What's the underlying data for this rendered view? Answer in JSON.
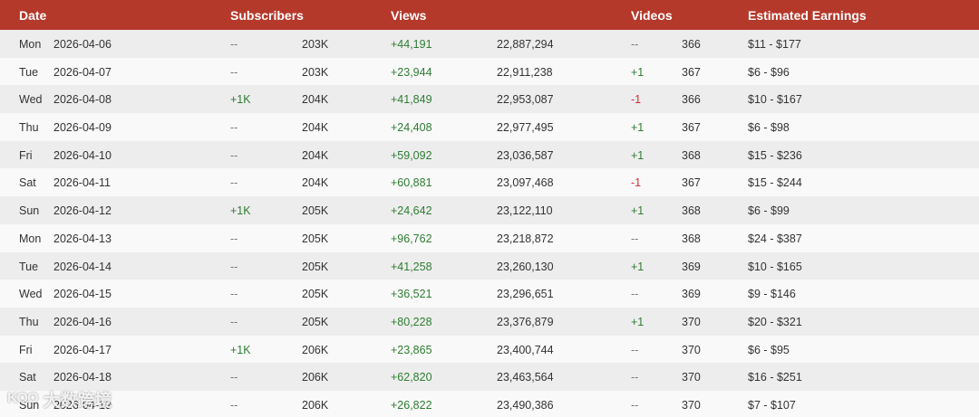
{
  "header": {
    "date": "Date",
    "subscribers": "Subscribers",
    "views": "Views",
    "videos": "Videos",
    "earnings": "Estimated Earnings"
  },
  "rows": [
    {
      "day": "Mon",
      "date": "2026-04-06",
      "sub_change": "--",
      "subs": "203K",
      "view_change": "+44,191",
      "views": "22,887,294",
      "video_change": "--",
      "videos": "366",
      "earnings": "$11 - $177"
    },
    {
      "day": "Tue",
      "date": "2026-04-07",
      "sub_change": "--",
      "subs": "203K",
      "view_change": "+23,944",
      "views": "22,911,238",
      "video_change": "+1",
      "videos": "367",
      "earnings": "$6 - $96"
    },
    {
      "day": "Wed",
      "date": "2026-04-08",
      "sub_change": "+1K",
      "subs": "204K",
      "view_change": "+41,849",
      "views": "22,953,087",
      "video_change": "-1",
      "videos": "366",
      "earnings": "$10 - $167"
    },
    {
      "day": "Thu",
      "date": "2026-04-09",
      "sub_change": "--",
      "subs": "204K",
      "view_change": "+24,408",
      "views": "22,977,495",
      "video_change": "+1",
      "videos": "367",
      "earnings": "$6 - $98"
    },
    {
      "day": "Fri",
      "date": "2026-04-10",
      "sub_change": "--",
      "subs": "204K",
      "view_change": "+59,092",
      "views": "23,036,587",
      "video_change": "+1",
      "videos": "368",
      "earnings": "$15 - $236"
    },
    {
      "day": "Sat",
      "date": "2026-04-11",
      "sub_change": "--",
      "subs": "204K",
      "view_change": "+60,881",
      "views": "23,097,468",
      "video_change": "-1",
      "videos": "367",
      "earnings": "$15 - $244"
    },
    {
      "day": "Sun",
      "date": "2026-04-12",
      "sub_change": "+1K",
      "subs": "205K",
      "view_change": "+24,642",
      "views": "23,122,110",
      "video_change": "+1",
      "videos": "368",
      "earnings": "$6 - $99"
    },
    {
      "day": "Mon",
      "date": "2026-04-13",
      "sub_change": "--",
      "subs": "205K",
      "view_change": "+96,762",
      "views": "23,218,872",
      "video_change": "--",
      "videos": "368",
      "earnings": "$24 - $387"
    },
    {
      "day": "Tue",
      "date": "2026-04-14",
      "sub_change": "--",
      "subs": "205K",
      "view_change": "+41,258",
      "views": "23,260,130",
      "video_change": "+1",
      "videos": "369",
      "earnings": "$10 - $165"
    },
    {
      "day": "Wed",
      "date": "2026-04-15",
      "sub_change": "--",
      "subs": "205K",
      "view_change": "+36,521",
      "views": "23,296,651",
      "video_change": "--",
      "videos": "369",
      "earnings": "$9 - $146"
    },
    {
      "day": "Thu",
      "date": "2026-04-16",
      "sub_change": "--",
      "subs": "205K",
      "view_change": "+80,228",
      "views": "23,376,879",
      "video_change": "+1",
      "videos": "370",
      "earnings": "$20 - $321"
    },
    {
      "day": "Fri",
      "date": "2026-04-17",
      "sub_change": "+1K",
      "subs": "206K",
      "view_change": "+23,865",
      "views": "23,400,744",
      "video_change": "--",
      "videos": "370",
      "earnings": "$6 - $95"
    },
    {
      "day": "Sat",
      "date": "2026-04-18",
      "sub_change": "--",
      "subs": "206K",
      "view_change": "+62,820",
      "views": "23,463,564",
      "video_change": "--",
      "videos": "370",
      "earnings": "$16 - $251"
    },
    {
      "day": "Sun",
      "date": "2026-04-19",
      "sub_change": "--",
      "subs": "206K",
      "view_change": "+26,822",
      "views": "23,490,386",
      "video_change": "--",
      "videos": "370",
      "earnings": "$7 - $107"
    }
  ],
  "watermark": {
    "logo": "KOO",
    "text": "大数跨境"
  },
  "colors": {
    "header_bg": "#b5392b",
    "positive": "#2e7d32",
    "negative": "#d32f2f"
  }
}
